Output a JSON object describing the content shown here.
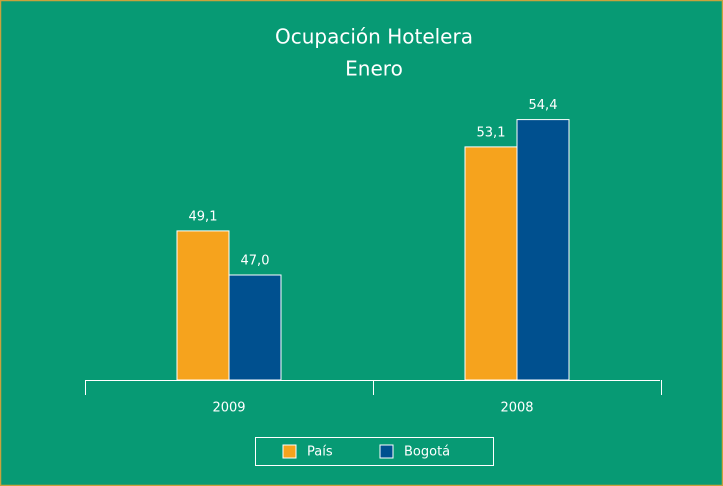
{
  "chart_data": {
    "type": "bar",
    "title": "Ocupación Hotelera",
    "subtitle": "Enero",
    "categories": [
      "2009",
      "2008"
    ],
    "series": [
      {
        "name": "País",
        "color": "#f6a31d",
        "values": [
          49.1,
          53.1
        ],
        "value_labels": [
          "49,1",
          "53,1"
        ]
      },
      {
        "name": "Bogotá",
        "color": "#00508f",
        "values": [
          47.0,
          54.4
        ],
        "value_labels": [
          "47,0",
          "54,4"
        ]
      }
    ],
    "ylim": [
      42,
      56
    ],
    "legend": "bottom"
  }
}
